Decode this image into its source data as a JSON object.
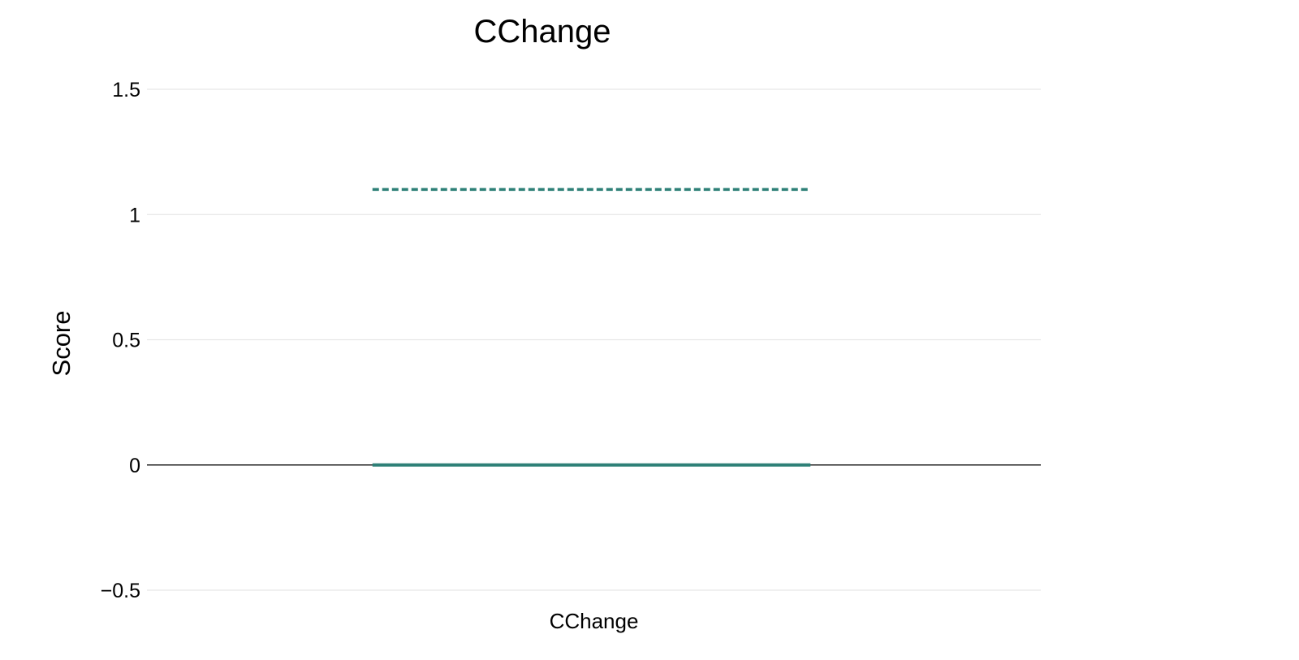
{
  "chart_data": {
    "type": "box",
    "title": "CChange",
    "xlabel": "",
    "ylabel": "Score",
    "categories": [
      "CChange"
    ],
    "ylim": [
      -0.55,
      1.65
    ],
    "yticks": [
      -0.5,
      0,
      0.5,
      1,
      1.5
    ],
    "ytick_labels": [
      "−0.5",
      "0",
      "0.5",
      "1",
      "1.5"
    ],
    "grid": true,
    "series": [
      {
        "category": "CChange",
        "median": 0,
        "mean": 1.1,
        "color": "#2e8077"
      }
    ]
  }
}
